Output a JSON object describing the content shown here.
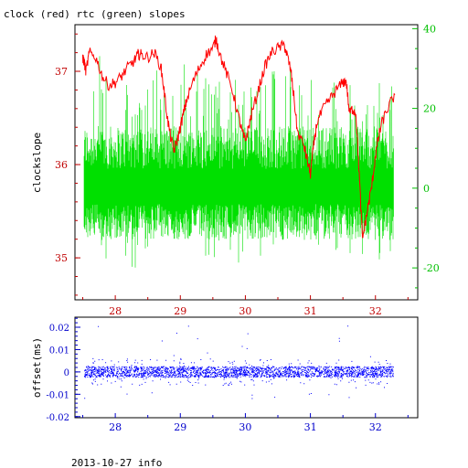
{
  "chart_data": [
    {
      "type": "line",
      "title": "clock (red) rtc (green) slopes",
      "ylabel": "clockslope",
      "x_ticks": [
        28,
        29,
        30,
        31,
        32
      ],
      "xlim": [
        27.38,
        32.65
      ],
      "ylim_left": [
        34.55,
        37.5
      ],
      "y_ticks_left": [
        35,
        36,
        37
      ],
      "ylim_right": [
        -28,
        41
      ],
      "y_ticks_right": [
        -20,
        0,
        20,
        40
      ],
      "colors": {
        "clock": "#ff0000",
        "rtc": "#00e000",
        "axis_left": "#c00000",
        "axis_right": "#00c000",
        "frame": "#000000"
      },
      "series": [
        {
          "axis": "left",
          "x": [
            27.5,
            27.52,
            27.55,
            27.6,
            27.7,
            27.8,
            27.9,
            28.0,
            28.1,
            28.2,
            28.3,
            28.35,
            28.4,
            28.5,
            28.6,
            28.7,
            28.75,
            28.8,
            28.85,
            28.9,
            28.95,
            29.0,
            29.05,
            29.1,
            29.2,
            29.3,
            29.4,
            29.5,
            29.55,
            29.6,
            29.7,
            29.8,
            29.9,
            29.95,
            30.0,
            30.05,
            30.1,
            30.2,
            30.3,
            30.4,
            30.5,
            30.6,
            30.65,
            30.7,
            30.75,
            30.8,
            30.9,
            30.95,
            31.0,
            31.05,
            31.1,
            31.2,
            31.3,
            31.4,
            31.5,
            31.55,
            31.6,
            31.65,
            31.7,
            31.75,
            31.8,
            31.85,
            31.9,
            31.95,
            32.0,
            32.05,
            32.1,
            32.2,
            32.3
          ],
          "y": [
            37.15,
            37.1,
            37.0,
            37.2,
            37.15,
            36.95,
            36.85,
            36.88,
            36.95,
            37.05,
            37.12,
            37.18,
            37.18,
            37.15,
            37.2,
            37.05,
            36.8,
            36.5,
            36.3,
            36.15,
            36.25,
            36.4,
            36.55,
            36.7,
            36.9,
            37.05,
            37.18,
            37.25,
            37.35,
            37.2,
            37.0,
            36.8,
            36.5,
            36.35,
            36.25,
            36.4,
            36.55,
            36.8,
            37.05,
            37.2,
            37.25,
            37.28,
            37.15,
            37.0,
            36.7,
            36.35,
            36.2,
            36.05,
            35.9,
            36.2,
            36.45,
            36.6,
            36.7,
            36.8,
            36.88,
            36.9,
            36.55,
            36.6,
            36.55,
            35.9,
            35.2,
            35.4,
            35.6,
            35.8,
            36.1,
            36.3,
            36.45,
            36.62,
            36.75
          ]
        },
        {
          "axis": "right",
          "x_start": 27.52,
          "x_end": 32.28,
          "upper_envelope": [
            34,
            28,
            30,
            32,
            30,
            28,
            30,
            32,
            30,
            28,
            26,
            28
          ],
          "lower_envelope": [
            -18,
            -20,
            -16,
            -14,
            -18,
            -20,
            -18,
            -16,
            -14,
            -16,
            -20,
            -18
          ],
          "typical_range": [
            -10,
            12
          ]
        }
      ]
    },
    {
      "type": "scatter",
      "ylabel": "offset(ms)",
      "x_ticks": [
        28,
        29,
        30,
        31,
        32
      ],
      "xlim": [
        27.38,
        32.65
      ],
      "ylim": [
        -0.0205,
        0.0245
      ],
      "y_ticks": [
        0.02,
        0.01,
        0,
        -0.01,
        -0.02
      ],
      "y_tick_labels": [
        "0.02",
        "0.01",
        "0",
        "-0.01",
        "-0.02"
      ],
      "colors": {
        "points": "#0000ff",
        "axis": "#0000cc"
      },
      "band": [
        -0.002,
        0.002
      ],
      "outlier_range": [
        -0.012,
        0.021
      ]
    }
  ],
  "footer": {
    "info": "2013-10-27 info"
  }
}
